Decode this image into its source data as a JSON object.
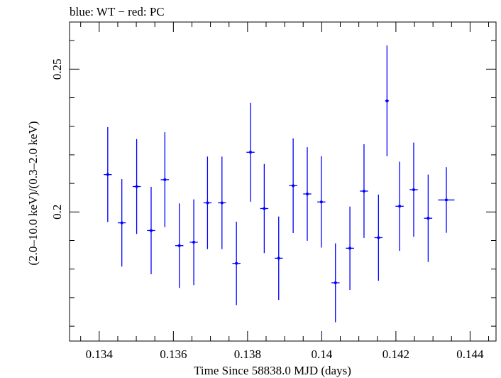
{
  "chart_data": {
    "type": "scatter",
    "title": "blue: WT − red: PC",
    "xlabel": "Time Since 58838.0 MJD (days)",
    "ylabel": "(2.0–10.0 keV)/(0.3–2.0 keV)",
    "xlim": [
      0.1332,
      0.1447
    ],
    "ylim": [
      0.1548,
      0.2665
    ],
    "x_ticks": [
      0.134,
      0.136,
      0.138,
      0.14,
      0.142,
      0.144
    ],
    "x_tick_labels": [
      "0.134",
      "0.136",
      "0.138",
      "0.14",
      "0.142",
      "0.144"
    ],
    "y_ticks": [
      0.2,
      0.25
    ],
    "y_tick_labels": [
      "0.2",
      "0.25"
    ],
    "grid": false,
    "series": [
      {
        "color": "#0000ff",
        "points": [
          {
            "x": 0.13423,
            "xerr": 0.00011,
            "y": 0.2131,
            "yerr_lo": 0.0166,
            "yerr_hi": 0.0166
          },
          {
            "x": 0.13461,
            "xerr": 0.00011,
            "y": 0.1962,
            "yerr_lo": 0.0153,
            "yerr_hi": 0.0153
          },
          {
            "x": 0.13501,
            "xerr": 0.00011,
            "y": 0.2089,
            "yerr_lo": 0.0166,
            "yerr_hi": 0.0166
          },
          {
            "x": 0.1354,
            "xerr": 0.00011,
            "y": 0.1935,
            "yerr_lo": 0.0153,
            "yerr_hi": 0.0153
          },
          {
            "x": 0.13577,
            "xerr": 0.00011,
            "y": 0.2113,
            "yerr_lo": 0.0166,
            "yerr_hi": 0.0166
          },
          {
            "x": 0.13616,
            "xerr": 0.00011,
            "y": 0.1882,
            "yerr_lo": 0.0148,
            "yerr_hi": 0.0148
          },
          {
            "x": 0.13655,
            "xerr": 0.00011,
            "y": 0.1894,
            "yerr_lo": 0.015,
            "yerr_hi": 0.015
          },
          {
            "x": 0.13692,
            "xerr": 0.00011,
            "y": 0.2032,
            "yerr_lo": 0.0162,
            "yerr_hi": 0.0162
          },
          {
            "x": 0.13731,
            "xerr": 0.00011,
            "y": 0.2032,
            "yerr_lo": 0.0162,
            "yerr_hi": 0.0162
          },
          {
            "x": 0.1377,
            "xerr": 0.00011,
            "y": 0.182,
            "yerr_lo": 0.0146,
            "yerr_hi": 0.0146
          },
          {
            "x": 0.13808,
            "xerr": 0.00011,
            "y": 0.2209,
            "yerr_lo": 0.0173,
            "yerr_hi": 0.0173
          },
          {
            "x": 0.13845,
            "xerr": 0.00011,
            "y": 0.2012,
            "yerr_lo": 0.0156,
            "yerr_hi": 0.0156
          },
          {
            "x": 0.13884,
            "xerr": 0.00011,
            "y": 0.1838,
            "yerr_lo": 0.0146,
            "yerr_hi": 0.0146
          },
          {
            "x": 0.13923,
            "xerr": 0.00011,
            "y": 0.2092,
            "yerr_lo": 0.0166,
            "yerr_hi": 0.0166
          },
          {
            "x": 0.13961,
            "xerr": 0.00011,
            "y": 0.2063,
            "yerr_lo": 0.0164,
            "yerr_hi": 0.0164
          },
          {
            "x": 0.13999,
            "xerr": 0.00011,
            "y": 0.2035,
            "yerr_lo": 0.016,
            "yerr_hi": 0.016
          },
          {
            "x": 0.14037,
            "xerr": 0.00011,
            "y": 0.1752,
            "yerr_lo": 0.0138,
            "yerr_hi": 0.0138
          },
          {
            "x": 0.14076,
            "xerr": 0.00011,
            "y": 0.1873,
            "yerr_lo": 0.0146,
            "yerr_hi": 0.0146
          },
          {
            "x": 0.14114,
            "xerr": 0.00011,
            "y": 0.2073,
            "yerr_lo": 0.0164,
            "yerr_hi": 0.0164
          },
          {
            "x": 0.14153,
            "xerr": 0.00011,
            "y": 0.191,
            "yerr_lo": 0.0151,
            "yerr_hi": 0.0151
          },
          {
            "x": 0.14176,
            "xerr": 5e-05,
            "y": 0.2389,
            "yerr_lo": 0.0194,
            "yerr_hi": 0.0194
          },
          {
            "x": 0.1421,
            "xerr": 0.00011,
            "y": 0.202,
            "yerr_lo": 0.0156,
            "yerr_hi": 0.0156
          },
          {
            "x": 0.14248,
            "xerr": 0.00011,
            "y": 0.2078,
            "yerr_lo": 0.0165,
            "yerr_hi": 0.0165
          },
          {
            "x": 0.14287,
            "xerr": 0.00011,
            "y": 0.1978,
            "yerr_lo": 0.0153,
            "yerr_hi": 0.0153
          },
          {
            "x": 0.14336,
            "xerr": 0.00022,
            "y": 0.2042,
            "yerr_lo": 0.0115,
            "yerr_hi": 0.0115
          }
        ]
      }
    ]
  }
}
